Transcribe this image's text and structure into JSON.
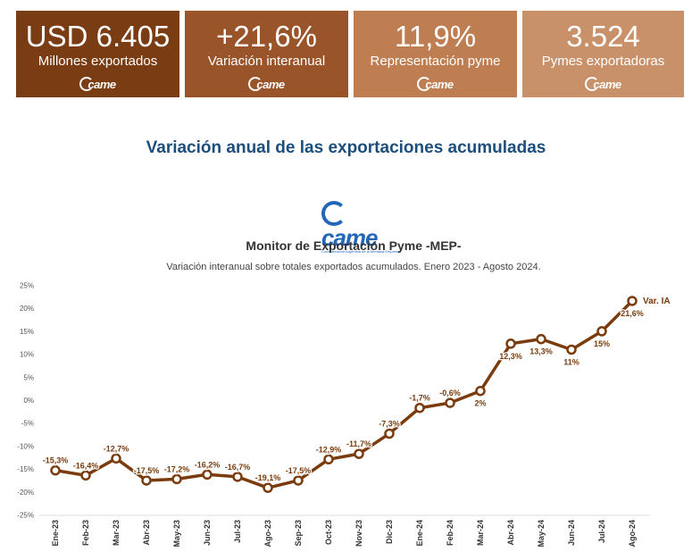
{
  "kpis": [
    {
      "value": "USD 6.405",
      "label": "Millones exportados",
      "logo": "came"
    },
    {
      "value": "+21,6%",
      "label": "Variación interanual",
      "logo": "came"
    },
    {
      "value": "11,9%",
      "label": "Representación pyme",
      "logo": "came"
    },
    {
      "value": "3.524",
      "label": "Pymes exportadoras",
      "logo": "came"
    }
  ],
  "section_title": "Variación anual de las exportaciones acumuladas",
  "came_logo": {
    "text": "came",
    "caption": "Confederación Argentina de la Mediana Empresa"
  },
  "colors": {
    "line": "#7a3c0c",
    "card1": "#7a3c12",
    "card2": "#99542a",
    "card3": "#bf7d52",
    "card4": "#c9916a",
    "title": "#1d4f7c"
  },
  "chart_data": {
    "type": "line",
    "title": "Monitor de Exportación Pyme -MEP-",
    "subtitle": "Variación interanual sobre totales exportados acumulados. Enero 2023 - Agosto 2024.",
    "categories": [
      "Ene-23",
      "Feb-23",
      "Mar-23",
      "Abr-23",
      "May-23",
      "Jun-23",
      "Jul-23",
      "Ago-23",
      "Sep-23",
      "Oct-23",
      "Nov-23",
      "Dic-23",
      "Ene-24",
      "Feb-24",
      "Mar-24",
      "Abr-24",
      "May-24",
      "Jun-24",
      "Jul-24",
      "Ago-24"
    ],
    "series": [
      {
        "name": "Var. IA",
        "values": [
          -15.3,
          -16.4,
          -12.7,
          -17.5,
          -17.2,
          -16.2,
          -16.7,
          -19.1,
          -17.5,
          -12.9,
          -11.7,
          -7.3,
          -1.7,
          -0.6,
          2,
          12.3,
          13.3,
          11,
          15,
          21.6
        ],
        "labels": [
          "-15,3%",
          "-16,4%",
          "-12,7%",
          "-17,5%",
          "-17,2%",
          "-16,2%",
          "-16,7%",
          "-19,1%",
          "-17,5%",
          "-12,9%",
          "-11,7%",
          "-7,3%",
          "-1,7%",
          "-0,6%",
          "2%",
          "12,3%",
          "13,3%",
          "11%",
          "15%",
          "21,6%"
        ],
        "label_pos": [
          "above",
          "above",
          "above",
          "above",
          "above",
          "above",
          "above",
          "above",
          "above",
          "above",
          "above",
          "above",
          "above",
          "above",
          "below",
          "below",
          "below",
          "below",
          "below",
          "below"
        ]
      }
    ],
    "yticks": [
      "25%",
      "20%",
      "15%",
      "10%",
      "5%",
      "0%",
      "-5%",
      "-10%",
      "-15%",
      "-20%",
      "-25%"
    ],
    "ylim": [
      -25,
      25
    ],
    "grid": false,
    "legend": "end-of-line label"
  }
}
